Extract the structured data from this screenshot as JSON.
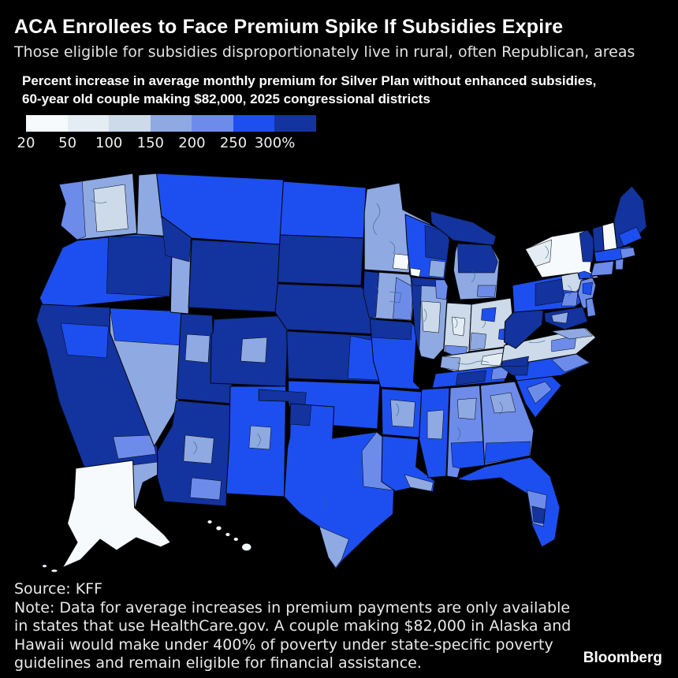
{
  "header": {
    "title": "ACA Enrollees to Face Premium Spike If Subsidies Expire",
    "subtitle": "Those eligible for subsidies disproportionately live in rural, often Republican, areas"
  },
  "chart_note": "Percent increase in average monthly premium for Silver Plan without enhanced subsidies, 60-year old couple making $82,000, 2025 congressional districts",
  "legend": {
    "labels": [
      "20",
      "50",
      "100",
      "150",
      "200",
      "250",
      "300%"
    ]
  },
  "footer": {
    "source": "Source: KFF",
    "note": "Note: Data for average increases in premium payments are only available in states that use HealthCare.gov. A couple making $82,000 in Alaska and Hawaii would make under 400% of poverty under state-specific poverty guidelines and remain eligible for financial assistance.",
    "brand": "Bloomberg"
  },
  "chart_data": {
    "type": "heatmap",
    "subtype": "choropleth-map",
    "geography": "United States, 2025 congressional districts",
    "title": "Percent increase in average monthly premium for Silver Plan without enhanced subsidies, 60-year old couple making $82,000",
    "unit": "percent increase in average monthly premium",
    "thresholds": [
      20,
      50,
      100,
      150,
      200,
      250,
      300
    ],
    "bins": [
      "20-50",
      "50-100",
      "100-150",
      "150-200",
      "200-250",
      "250-300",
      "300+"
    ],
    "colors": [
      "#f7fafc",
      "#e4edf4",
      "#ccdaea",
      "#8fa9e2",
      "#6d8cea",
      "#1d4ff0",
      "#13339e"
    ],
    "legend_position": "top-left",
    "border_color": "#05080c",
    "district_line_color": "#2a5f80",
    "regions": [
      {
        "state": "AK",
        "bin": "20-50"
      },
      {
        "state": "AL",
        "bin": "200-250",
        "mixed": true
      },
      {
        "state": "AR",
        "bin": "250-300",
        "mixed": true
      },
      {
        "state": "AZ",
        "bin": "300+",
        "mixed": true
      },
      {
        "state": "CA",
        "bin": "300+",
        "mixed": true
      },
      {
        "state": "CO",
        "bin": "300+",
        "mixed": true
      },
      {
        "state": "CT",
        "bin": "200-250"
      },
      {
        "state": "DE",
        "bin": "200-250"
      },
      {
        "state": "FL",
        "bin": "250-300",
        "mixed": true
      },
      {
        "state": "GA",
        "bin": "200-250",
        "mixed": true
      },
      {
        "state": "HI",
        "bin": "20-50"
      },
      {
        "state": "IA",
        "bin": "150-200",
        "mixed": true
      },
      {
        "state": "ID",
        "bin": "150-200",
        "mixed": true
      },
      {
        "state": "IL",
        "bin": "150-300",
        "mixed": true
      },
      {
        "state": "IN",
        "bin": "100-150",
        "mixed": true
      },
      {
        "state": "KS",
        "bin": "300+",
        "mixed": true
      },
      {
        "state": "KY",
        "bin": "100-150",
        "mixed": true
      },
      {
        "state": "LA",
        "bin": "250-300",
        "mixed": true
      },
      {
        "state": "MA",
        "bin": "250-300",
        "mixed": true
      },
      {
        "state": "MD",
        "bin": "300+",
        "mixed": true
      },
      {
        "state": "ME",
        "bin": "300+",
        "mixed": true
      },
      {
        "state": "MI",
        "bin": "150-300",
        "mixed": true
      },
      {
        "state": "MN",
        "bin": "150-200",
        "mixed": true
      },
      {
        "state": "MO",
        "bin": "250-300",
        "mixed": true
      },
      {
        "state": "MS",
        "bin": "250-300",
        "mixed": true
      },
      {
        "state": "MT",
        "bin": "250-300"
      },
      {
        "state": "NC",
        "bin": "250-300",
        "mixed": true
      },
      {
        "state": "ND",
        "bin": "250-300"
      },
      {
        "state": "NE",
        "bin": "300+"
      },
      {
        "state": "NH",
        "bin": "20-50"
      },
      {
        "state": "NJ",
        "bin": "200-250",
        "mixed": true
      },
      {
        "state": "NM",
        "bin": "250-300",
        "mixed": true
      },
      {
        "state": "NV",
        "bin": "150-200",
        "mixed": true
      },
      {
        "state": "NY",
        "bin": "20-50",
        "mixed": true
      },
      {
        "state": "OH",
        "bin": "100-150",
        "mixed": true
      },
      {
        "state": "OK",
        "bin": "250-300",
        "mixed": true
      },
      {
        "state": "OR",
        "bin": "250-300",
        "mixed": true
      },
      {
        "state": "PA",
        "bin": "250-300",
        "mixed": true
      },
      {
        "state": "RI",
        "bin": "200-250"
      },
      {
        "state": "SC",
        "bin": "250-300",
        "mixed": true
      },
      {
        "state": "SD",
        "bin": "300+"
      },
      {
        "state": "TN",
        "bin": "250-300",
        "mixed": true
      },
      {
        "state": "TX",
        "bin": "250-300",
        "mixed": true
      },
      {
        "state": "UT",
        "bin": "300+",
        "mixed": true
      },
      {
        "state": "VA",
        "bin": "100-150",
        "mixed": true
      },
      {
        "state": "VT",
        "bin": "300+"
      },
      {
        "state": "WA",
        "bin": "150-200",
        "mixed": true
      },
      {
        "state": "WI",
        "bin": "250-300",
        "mixed": true
      },
      {
        "state": "WV",
        "bin": "300+"
      },
      {
        "state": "WY",
        "bin": "300+"
      }
    ]
  }
}
